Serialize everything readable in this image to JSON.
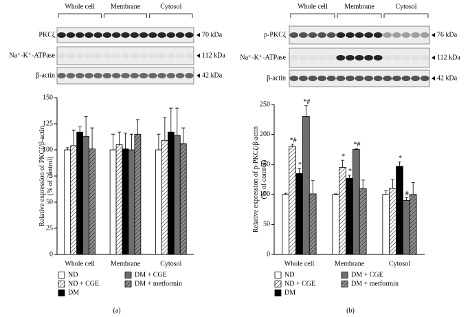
{
  "panels": [
    {
      "caption": "(a)",
      "blot": {
        "groups": [
          "Whole cell",
          "Membrane",
          "Cytosol"
        ],
        "rows": [
          {
            "label": "PKCζ",
            "size": "70 kDa"
          },
          {
            "label": "Na⁺-K⁺-ATPase",
            "size": "112 kDa"
          },
          {
            "label": "β-actin",
            "size": "42 kDa"
          }
        ]
      }
    },
    {
      "caption": "(b)",
      "blot": {
        "groups": [
          "Whole cell",
          "Membrane",
          "Cytosol"
        ],
        "rows": [
          {
            "label": "p-PKCζ",
            "size": "76 kDa"
          },
          {
            "label": "Na⁺-K⁺-ATPase",
            "size": "112 kDa"
          },
          {
            "label": "β-actin",
            "size": "42 kDa"
          }
        ]
      }
    }
  ],
  "chart_data": [
    {
      "type": "bar",
      "y_label": [
        "Relative expression of PKCζ/β-actin",
        "(% of control)"
      ],
      "categories": [
        "Whole cell",
        "Membrane",
        "Cytosol"
      ],
      "ylim": [
        0,
        150
      ],
      "yticks": [
        0,
        25,
        50,
        75,
        100,
        125,
        150
      ],
      "series": [
        {
          "name": "ND",
          "color": "#ffffff",
          "hatch": false,
          "values": [
            100,
            100,
            100
          ],
          "errors": [
            2,
            15,
            15
          ]
        },
        {
          "name": "ND + CGE",
          "color": "#ffffff",
          "hatch": true,
          "values": [
            104,
            105,
            109
          ],
          "errors": [
            15,
            12,
            22
          ]
        },
        {
          "name": "DM",
          "color": "#000000",
          "hatch": false,
          "values": [
            117,
            101,
            117
          ],
          "errors": [
            5,
            15,
            23
          ]
        },
        {
          "name": "DM + CGE",
          "color": "#6e6e6e",
          "hatch": false,
          "values": [
            113,
            100,
            114
          ],
          "errors": [
            19,
            15,
            26
          ]
        },
        {
          "name": "DM + metformin",
          "color": "#8c8c8c",
          "hatch": true,
          "values": [
            101,
            115,
            106
          ],
          "errors": [
            20,
            14,
            15
          ]
        }
      ]
    },
    {
      "type": "bar",
      "y_label": [
        "Relative expression of p-PKCζ/β-actin",
        "(% of control)"
      ],
      "categories": [
        "Whole cell",
        "Membrane",
        "Cytosol"
      ],
      "ylim": [
        0,
        250
      ],
      "yticks": [
        0,
        50,
        100,
        150,
        200,
        250
      ],
      "series": [
        {
          "name": "ND",
          "color": "#ffffff",
          "hatch": false,
          "values": [
            100,
            100,
            100
          ],
          "errors": [
            2,
            1,
            6
          ],
          "annotations": [
            null,
            null,
            null
          ]
        },
        {
          "name": "ND + CGE",
          "color": "#ffffff",
          "hatch": true,
          "values": [
            180,
            145,
            110
          ],
          "errors": [
            4,
            12,
            15
          ],
          "annotations": [
            "*#",
            "*",
            null
          ]
        },
        {
          "name": "DM",
          "color": "#000000",
          "hatch": false,
          "values": [
            135,
            127,
            147
          ],
          "errors": [
            8,
            5,
            7
          ],
          "annotations": [
            "*",
            "*",
            "*"
          ]
        },
        {
          "name": "DM + CGE",
          "color": "#6e6e6e",
          "hatch": false,
          "values": [
            230,
            175,
            90
          ],
          "errors": [
            18,
            2,
            5
          ],
          "annotations": [
            "*#",
            "*#",
            "#"
          ]
        },
        {
          "name": "DM + metformin",
          "color": "#8c8c8c",
          "hatch": true,
          "values": [
            101,
            110,
            100
          ],
          "errors": [
            22,
            14,
            20
          ],
          "annotations": [
            null,
            null,
            null
          ]
        }
      ]
    }
  ]
}
